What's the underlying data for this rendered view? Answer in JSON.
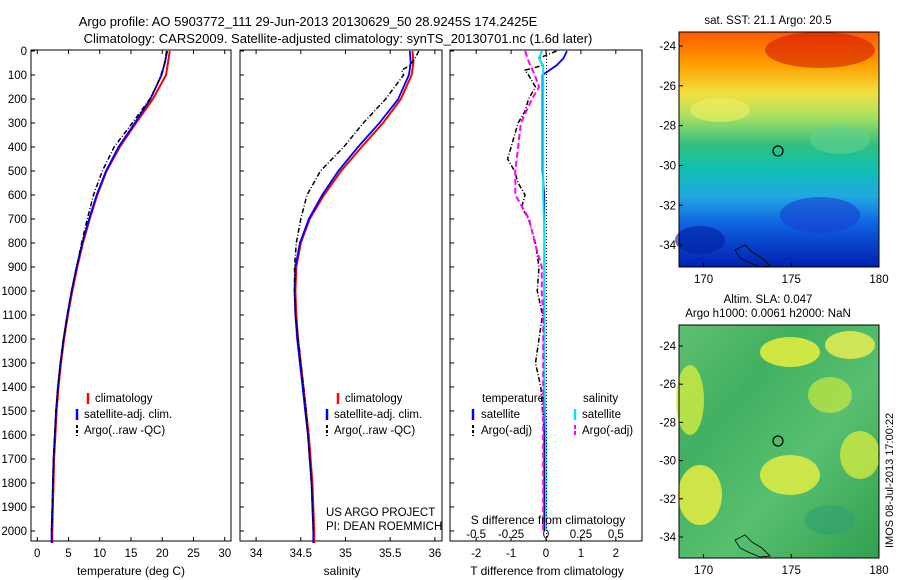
{
  "header": {
    "line1": "Argo profile: AO 5903772_111 29-Jun-2013 20130629_50 28.9245S 174.2425E",
    "line2": "Climatology: CARS2009. Satellite-adjusted climatology: synTS_20130701.nc (1.6d later)"
  },
  "colors": {
    "climatology": "#ff0000",
    "satellite": "#0000ff",
    "argo": "#000000",
    "salinity_satellite": "#00e5ee",
    "salinity_argo": "#ff00ff"
  },
  "depth_axis": {
    "ticks": [
      "0",
      "100",
      "200",
      "300",
      "400",
      "500",
      "600",
      "700",
      "800",
      "900",
      "1000",
      "1100",
      "1200",
      "1300",
      "1400",
      "1500",
      "1600",
      "1700",
      "1800",
      "1900",
      "2000"
    ]
  },
  "panels": {
    "temperature": {
      "xlabel": "temperature (deg C)",
      "xticks": [
        "0",
        "5",
        "10",
        "15",
        "20",
        "25",
        "30"
      ],
      "legend": [
        "climatology",
        "satellite-adj. clim.",
        "Argo(..raw -QC)"
      ]
    },
    "salinity": {
      "xlabel": "salinity",
      "xticks": [
        "34",
        "34.5",
        "35",
        "35.5",
        "36"
      ],
      "legend": [
        "climatology",
        "satellite-adj. clim.",
        "Argo(..raw -QC)"
      ],
      "credit1": "US ARGO PROJECT",
      "credit2": "PI: DEAN ROEMMICH"
    },
    "difference": {
      "xlabel": "T difference from climatology",
      "xticks": [
        "-2",
        "-1",
        "0",
        "1",
        "2"
      ],
      "top_label": "S difference from climatology",
      "top_ticks": [
        "-0.5",
        "-0.25",
        "0",
        "0.25",
        "0.5"
      ],
      "legend_temp_title": "temperature",
      "legend_sal_title": "salinity",
      "legend_temp": [
        "satellite",
        "Argo(-adj)"
      ],
      "legend_sal": [
        "satellite",
        "Argo(-adj)"
      ]
    }
  },
  "maps": {
    "sst": {
      "title": "sat. SST: 21.1  Argo: 20.5",
      "yticks": [
        "-24",
        "-26",
        "-28",
        "-30",
        "-32",
        "-34"
      ],
      "xticks": [
        "170",
        "175",
        "180"
      ]
    },
    "sla": {
      "title1": "Altim. SLA: 0.047",
      "title2": "Argo h1000: 0.0061 h2000: NaN",
      "yticks": [
        "-24",
        "-26",
        "-28",
        "-30",
        "-32",
        "-34"
      ],
      "xticks": [
        "170",
        "175",
        "180"
      ]
    }
  },
  "stamp": "IMOS 08-Jul-2013 17:00:22",
  "chart_data": [
    {
      "type": "line",
      "title": "",
      "xlabel": "temperature (deg C)",
      "ylabel": "",
      "xlim": [
        -1,
        31
      ],
      "ylim": [
        2050,
        0
      ],
      "series": [
        {
          "name": "climatology",
          "y": [
            0,
            50,
            100,
            200,
            300,
            400,
            500,
            600,
            700,
            800,
            900,
            1000,
            1100,
            1200,
            1300,
            1400,
            1500,
            1600,
            1700,
            1800,
            1900,
            2000,
            2050
          ],
          "values": [
            21.2,
            20.9,
            20.6,
            18.5,
            15.8,
            13.2,
            11.1,
            9.6,
            8.4,
            7.3,
            6.4,
            5.6,
            4.9,
            4.3,
            3.8,
            3.4,
            3.1,
            2.9,
            2.7,
            2.6,
            2.5,
            2.4,
            2.4
          ]
        },
        {
          "name": "satellite-adj. clim.",
          "y": [
            0,
            50,
            100,
            200,
            300,
            400,
            500,
            600,
            700,
            800,
            900,
            1000,
            1100,
            1200,
            1300,
            1400,
            1500,
            1600,
            1700,
            1800,
            1900,
            2000,
            2050
          ],
          "values": [
            20.8,
            20.4,
            19.9,
            18.1,
            15.6,
            13.0,
            11.0,
            9.5,
            8.3,
            7.2,
            6.3,
            5.5,
            4.8,
            4.2,
            3.7,
            3.3,
            3.0,
            2.8,
            2.6,
            2.5,
            2.4,
            2.3,
            2.3
          ]
        },
        {
          "name": "Argo(..raw -QC)",
          "y": [
            0,
            30,
            60,
            100,
            150,
            200,
            300,
            400,
            500,
            600,
            700,
            800,
            900,
            1000,
            1100,
            1200,
            1300,
            1400,
            1500,
            1600,
            1700,
            1800,
            1900,
            2000
          ],
          "values": [
            20.7,
            20.5,
            20.3,
            19.8,
            19.0,
            18.0,
            15.2,
            12.3,
            10.4,
            9.0,
            8.0,
            7.1,
            6.3,
            5.5,
            4.8,
            4.2,
            3.7,
            3.3,
            3.0,
            2.8,
            2.6,
            2.5,
            2.4,
            2.3
          ]
        }
      ]
    },
    {
      "type": "line",
      "title": "",
      "xlabel": "salinity",
      "ylabel": "",
      "xlim": [
        33.82,
        36.08
      ],
      "ylim": [
        2050,
        0
      ],
      "series": [
        {
          "name": "climatology",
          "y": [
            0,
            50,
            100,
            200,
            300,
            400,
            500,
            600,
            700,
            800,
            900,
            1000,
            1100,
            1200,
            1300,
            1400,
            1500,
            1600,
            1700,
            1800,
            1900,
            2000,
            2050
          ],
          "values": [
            35.75,
            35.76,
            35.74,
            35.62,
            35.42,
            35.18,
            34.95,
            34.76,
            34.6,
            34.5,
            34.45,
            34.44,
            34.45,
            34.47,
            34.5,
            34.53,
            34.56,
            34.59,
            34.61,
            34.63,
            34.64,
            34.65,
            34.65
          ]
        },
        {
          "name": "satellite-adj. clim.",
          "y": [
            0,
            50,
            100,
            200,
            300,
            400,
            500,
            600,
            700,
            800,
            900,
            1000,
            1100,
            1200,
            1300,
            1400,
            1500,
            1600,
            1700,
            1800,
            1900,
            2000,
            2050
          ],
          "values": [
            35.72,
            35.73,
            35.71,
            35.59,
            35.38,
            35.14,
            34.92,
            34.74,
            34.59,
            34.49,
            34.44,
            34.43,
            34.44,
            34.46,
            34.49,
            34.52,
            34.55,
            34.58,
            34.6,
            34.62,
            34.63,
            34.64,
            34.64
          ]
        },
        {
          "name": "Argo(..raw -QC)",
          "y": [
            0,
            30,
            60,
            80,
            100,
            150,
            200,
            300,
            400,
            500,
            600,
            700,
            800,
            900,
            1000,
            1100,
            1200,
            1300,
            1400,
            1500,
            1600,
            1700,
            1800,
            1900,
            2000
          ],
          "values": [
            35.82,
            35.78,
            35.72,
            35.63,
            35.65,
            35.55,
            35.45,
            35.2,
            34.98,
            34.72,
            34.57,
            34.5,
            34.45,
            34.43,
            34.43,
            34.44,
            34.47,
            34.5,
            34.53,
            34.56,
            34.58,
            34.6,
            34.62,
            34.63,
            34.64
          ]
        }
      ]
    },
    {
      "type": "line",
      "title": "",
      "xlabel": "T difference from climatology",
      "ylabel": "",
      "xlim": [
        -2.75,
        2.75
      ],
      "ylim": [
        2050,
        0
      ],
      "series": [
        {
          "name": "temperature satellite",
          "y": [
            0,
            30,
            60,
            100,
            150,
            200,
            300,
            400,
            500,
            600,
            700,
            800,
            900,
            1000,
            1200,
            1400,
            1600,
            1800,
            2000
          ],
          "values": [
            0.6,
            0.5,
            0.3,
            -0.1,
            -0.1,
            -0.1,
            -0.1,
            -0.1,
            -0.1,
            -0.05,
            -0.05,
            -0.05,
            -0.05,
            -0.05,
            -0.05,
            -0.05,
            -0.05,
            -0.05,
            -0.05
          ]
        },
        {
          "name": "temperature Argo(-adj)",
          "y": [
            0,
            30,
            60,
            80,
            100,
            150,
            200,
            250,
            300,
            350,
            400,
            450,
            500,
            550,
            600,
            650,
            700,
            750,
            800,
            900,
            1000,
            1100,
            1200,
            1300,
            1400,
            1500,
            1600,
            1700,
            1800,
            1900,
            2000
          ],
          "values": [
            0.3,
            -0.2,
            -0.1,
            -0.6,
            -0.5,
            -0.3,
            -0.5,
            -0.6,
            -0.8,
            -0.9,
            -1.0,
            -1.1,
            -0.9,
            -0.8,
            -0.6,
            -0.7,
            -0.5,
            -0.4,
            -0.3,
            -0.2,
            -0.25,
            -0.1,
            -0.2,
            -0.3,
            -0.15,
            -0.1,
            -0.05,
            -0.05,
            -0.05,
            -0.05,
            -0.05
          ]
        },
        {
          "name": "salinity satellite",
          "y": [
            0,
            30,
            60,
            100,
            200,
            400,
            600,
            800,
            1000,
            1200,
            1400,
            1600,
            1800,
            2000
          ],
          "values": [
            -0.03,
            -0.05,
            -0.02,
            -0.02,
            -0.02,
            -0.02,
            -0.02,
            -0.01,
            -0.01,
            -0.01,
            -0.01,
            0.0,
            0.0,
            0.0
          ]
        },
        {
          "name": "salinity Argo(-adj)",
          "y": [
            0,
            50,
            100,
            150,
            200,
            300,
            400,
            500,
            600,
            700,
            800,
            900,
            1000,
            1100,
            1200,
            1300,
            1400,
            1500,
            1600,
            1700,
            1800,
            1900,
            2000
          ],
          "values": [
            -0.15,
            -0.12,
            -0.08,
            -0.05,
            -0.1,
            -0.18,
            -0.2,
            -0.22,
            -0.22,
            -0.12,
            -0.08,
            -0.03,
            -0.03,
            -0.02,
            -0.02,
            -0.02,
            -0.02,
            -0.02,
            -0.02,
            -0.02,
            -0.02,
            -0.02,
            -0.02
          ]
        }
      ]
    }
  ]
}
